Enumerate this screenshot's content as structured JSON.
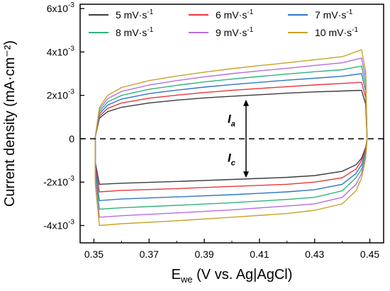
{
  "chart_data": {
    "type": "line",
    "title": "",
    "xlabel": {
      "main": "E",
      "sub": "we",
      "rest": " (V vs. Ag|AgCl)"
    },
    "ylabel": "Current density (mA·cm⁻²)",
    "xlim": [
      0.345,
      0.455
    ],
    "ylim": [
      -0.0048,
      0.0062
    ],
    "x_ticks": [
      {
        "value": 0.35,
        "label": "0.35"
      },
      {
        "value": 0.37,
        "label": "0.37"
      },
      {
        "value": 0.39,
        "label": "0.39"
      },
      {
        "value": 0.41,
        "label": "0.41"
      },
      {
        "value": 0.43,
        "label": "0.43"
      },
      {
        "value": 0.45,
        "label": "0.45"
      }
    ],
    "y_ticks": [
      {
        "value": -0.004,
        "mant": "-4x10",
        "exp": "-3"
      },
      {
        "value": -0.002,
        "mant": "-2x10",
        "exp": "-3"
      },
      {
        "value": 0,
        "mant": "0",
        "exp": ""
      },
      {
        "value": 0.002,
        "mant": "2x10",
        "exp": "-3"
      },
      {
        "value": 0.004,
        "mant": "4x10",
        "exp": "-3"
      },
      {
        "value": 0.006,
        "mant": "6x10",
        "exp": "-3"
      }
    ],
    "grid": false,
    "legend_position": "top",
    "legend_unit": {
      "base": " mV·s",
      "exp": "-1"
    },
    "series": [
      {
        "name": "5",
        "color": "#3c3c3c",
        "anodic": [
          [
            0.3505,
            0.0001
          ],
          [
            0.352,
            0.00095
          ],
          [
            0.355,
            0.00125
          ],
          [
            0.36,
            0.00145
          ],
          [
            0.37,
            0.00165
          ],
          [
            0.38,
            0.00178
          ],
          [
            0.39,
            0.00188
          ],
          [
            0.4,
            0.00196
          ],
          [
            0.41,
            0.00203
          ],
          [
            0.42,
            0.0021
          ],
          [
            0.43,
            0.00216
          ],
          [
            0.44,
            0.0022
          ],
          [
            0.447,
            0.00223
          ],
          [
            0.4485,
            0.0016
          ],
          [
            0.449,
            0.0
          ]
        ],
        "cathodic": [
          [
            0.449,
            0.0
          ],
          [
            0.4485,
            -0.0004
          ],
          [
            0.447,
            -0.0009
          ],
          [
            0.445,
            -0.0012
          ],
          [
            0.44,
            -0.0015
          ],
          [
            0.43,
            -0.0017
          ],
          [
            0.42,
            -0.00178
          ],
          [
            0.4,
            -0.00188
          ],
          [
            0.38,
            -0.00197
          ],
          [
            0.36,
            -0.00205
          ],
          [
            0.352,
            -0.0021
          ],
          [
            0.3505,
            -0.0011
          ],
          [
            0.3505,
            0.0001
          ]
        ]
      },
      {
        "name": "6",
        "color": "#e8353a",
        "anodic": [
          [
            0.3505,
            0.0001
          ],
          [
            0.352,
            0.00105
          ],
          [
            0.355,
            0.0014
          ],
          [
            0.36,
            0.00165
          ],
          [
            0.37,
            0.00187
          ],
          [
            0.38,
            0.00201
          ],
          [
            0.39,
            0.00213
          ],
          [
            0.4,
            0.00223
          ],
          [
            0.41,
            0.00232
          ],
          [
            0.42,
            0.0024
          ],
          [
            0.43,
            0.00248
          ],
          [
            0.44,
            0.00255
          ],
          [
            0.447,
            0.0026
          ],
          [
            0.4485,
            0.0019
          ],
          [
            0.449,
            0.0
          ]
        ],
        "cathodic": [
          [
            0.449,
            0.0
          ],
          [
            0.4485,
            -0.0005
          ],
          [
            0.447,
            -0.001
          ],
          [
            0.445,
            -0.0014
          ],
          [
            0.44,
            -0.0018
          ],
          [
            0.43,
            -0.002
          ],
          [
            0.42,
            -0.0021
          ],
          [
            0.4,
            -0.0022
          ],
          [
            0.38,
            -0.0023
          ],
          [
            0.36,
            -0.00238
          ],
          [
            0.352,
            -0.00245
          ],
          [
            0.3505,
            -0.0013
          ],
          [
            0.3505,
            0.0001
          ]
        ]
      },
      {
        "name": "7",
        "color": "#2f76c9",
        "anodic": [
          [
            0.3505,
            0.0001
          ],
          [
            0.352,
            0.00115
          ],
          [
            0.355,
            0.00155
          ],
          [
            0.36,
            0.00183
          ],
          [
            0.37,
            0.00208
          ],
          [
            0.38,
            0.00224
          ],
          [
            0.39,
            0.00238
          ],
          [
            0.4,
            0.0025
          ],
          [
            0.41,
            0.0026
          ],
          [
            0.42,
            0.0027
          ],
          [
            0.43,
            0.00279
          ],
          [
            0.44,
            0.00288
          ],
          [
            0.447,
            0.003
          ],
          [
            0.4485,
            0.0022
          ],
          [
            0.449,
            0.0
          ]
        ],
        "cathodic": [
          [
            0.449,
            0.0
          ],
          [
            0.4485,
            -0.0006
          ],
          [
            0.447,
            -0.0012
          ],
          [
            0.445,
            -0.0016
          ],
          [
            0.44,
            -0.0021
          ],
          [
            0.43,
            -0.00235
          ],
          [
            0.42,
            -0.00245
          ],
          [
            0.4,
            -0.00258
          ],
          [
            0.38,
            -0.00268
          ],
          [
            0.36,
            -0.00278
          ],
          [
            0.352,
            -0.00285
          ],
          [
            0.3505,
            -0.0015
          ],
          [
            0.3505,
            0.0001
          ]
        ]
      },
      {
        "name": "8",
        "color": "#2fb37a",
        "anodic": [
          [
            0.3505,
            0.0001
          ],
          [
            0.352,
            0.00125
          ],
          [
            0.355,
            0.0017
          ],
          [
            0.36,
            0.002
          ],
          [
            0.37,
            0.00228
          ],
          [
            0.38,
            0.00246
          ],
          [
            0.39,
            0.00262
          ],
          [
            0.4,
            0.00275
          ],
          [
            0.41,
            0.00287
          ],
          [
            0.42,
            0.00298
          ],
          [
            0.43,
            0.00309
          ],
          [
            0.44,
            0.00318
          ],
          [
            0.447,
            0.00335
          ],
          [
            0.4485,
            0.0025
          ],
          [
            0.449,
            0.0
          ]
        ],
        "cathodic": [
          [
            0.449,
            0.0
          ],
          [
            0.4485,
            -0.0007
          ],
          [
            0.447,
            -0.0014
          ],
          [
            0.445,
            -0.0018
          ],
          [
            0.44,
            -0.0024
          ],
          [
            0.43,
            -0.0027
          ],
          [
            0.42,
            -0.0028
          ],
          [
            0.4,
            -0.00295
          ],
          [
            0.38,
            -0.00307
          ],
          [
            0.36,
            -0.00318
          ],
          [
            0.352,
            -0.00325
          ],
          [
            0.3505,
            -0.0017
          ],
          [
            0.3505,
            0.0001
          ]
        ]
      },
      {
        "name": "9",
        "color": "#b66ee0",
        "anodic": [
          [
            0.3505,
            0.0001
          ],
          [
            0.352,
            0.00135
          ],
          [
            0.355,
            0.00185
          ],
          [
            0.36,
            0.00218
          ],
          [
            0.37,
            0.00248
          ],
          [
            0.38,
            0.00268
          ],
          [
            0.39,
            0.00285
          ],
          [
            0.4,
            0.003
          ],
          [
            0.41,
            0.00313
          ],
          [
            0.42,
            0.00325
          ],
          [
            0.43,
            0.00338
          ],
          [
            0.44,
            0.0035
          ],
          [
            0.447,
            0.00372
          ],
          [
            0.4485,
            0.0028
          ],
          [
            0.449,
            0.0
          ]
        ],
        "cathodic": [
          [
            0.449,
            0.0
          ],
          [
            0.4485,
            -0.0008
          ],
          [
            0.447,
            -0.0016
          ],
          [
            0.445,
            -0.0021
          ],
          [
            0.44,
            -0.0027
          ],
          [
            0.43,
            -0.003
          ],
          [
            0.42,
            -0.0031
          ],
          [
            0.4,
            -0.00328
          ],
          [
            0.38,
            -0.00342
          ],
          [
            0.36,
            -0.00355
          ],
          [
            0.352,
            -0.00362
          ],
          [
            0.3505,
            -0.0019
          ],
          [
            0.3505,
            0.0001
          ]
        ]
      },
      {
        "name": "10",
        "color": "#c9a227",
        "anodic": [
          [
            0.3505,
            0.0001
          ],
          [
            0.352,
            0.00145
          ],
          [
            0.355,
            0.002
          ],
          [
            0.36,
            0.00236
          ],
          [
            0.37,
            0.00268
          ],
          [
            0.38,
            0.00289
          ],
          [
            0.39,
            0.00307
          ],
          [
            0.4,
            0.00323
          ],
          [
            0.41,
            0.00337
          ],
          [
            0.42,
            0.0035
          ],
          [
            0.43,
            0.00364
          ],
          [
            0.44,
            0.00378
          ],
          [
            0.447,
            0.0041
          ],
          [
            0.4485,
            0.0031
          ],
          [
            0.449,
            0.0
          ]
        ],
        "cathodic": [
          [
            0.449,
            0.0
          ],
          [
            0.4485,
            -0.0009
          ],
          [
            0.447,
            -0.0018
          ],
          [
            0.445,
            -0.0024
          ],
          [
            0.44,
            -0.003
          ],
          [
            0.43,
            -0.0033
          ],
          [
            0.42,
            -0.00345
          ],
          [
            0.4,
            -0.00362
          ],
          [
            0.38,
            -0.00378
          ],
          [
            0.36,
            -0.00392
          ],
          [
            0.352,
            -0.004
          ],
          [
            0.3505,
            -0.0021
          ],
          [
            0.3505,
            0.0001
          ]
        ]
      }
    ],
    "zero_line": {
      "y": 0,
      "style": "dashed"
    },
    "annotations": [
      {
        "main": "I",
        "sub": "a",
        "arrow_from": 0.0,
        "arrow_to": 0.0018,
        "x": 0.4
      },
      {
        "main": "I",
        "sub": "c",
        "arrow_from": 0.0,
        "arrow_to": -0.0018,
        "x": 0.4
      }
    ]
  }
}
